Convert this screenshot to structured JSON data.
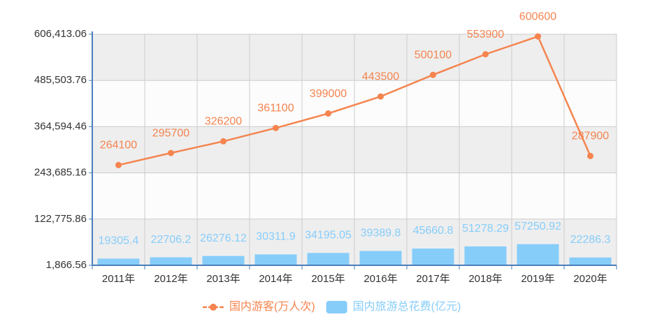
{
  "chart_data": {
    "type": "combo",
    "categories": [
      "2011年",
      "2012年",
      "2013年",
      "2014年",
      "2015年",
      "2016年",
      "2017年",
      "2018年",
      "2019年",
      "2020年"
    ],
    "series": [
      {
        "name": "国内游客(万人次)",
        "type": "line",
        "color": "#f5844f",
        "values": [
          264100,
          295700,
          326200,
          361100,
          399000,
          443500,
          500100,
          553900,
          600600,
          287900
        ]
      },
      {
        "name": "国内旅游总花费(亿元)",
        "type": "bar",
        "color": "#87cdfa",
        "values": [
          19305.4,
          22706.2,
          26276.12,
          30311.9,
          34195.05,
          39389.8,
          45660.8,
          51278.29,
          57250.92,
          22286.3
        ]
      }
    ],
    "ylim": [
      1866.56,
      606413.06
    ],
    "yticks": [
      {
        "value": 1866.56,
        "label": "1,866.56"
      },
      {
        "value": 122775.86,
        "label": "122,775.86"
      },
      {
        "value": 243685.16,
        "label": "243,685.16"
      },
      {
        "value": 364594.46,
        "label": "364,594.46"
      },
      {
        "value": 485503.76,
        "label": "485,503.76"
      },
      {
        "value": 606413.06,
        "label": "606,413.06"
      }
    ],
    "grid": true,
    "legend": "bottom"
  }
}
